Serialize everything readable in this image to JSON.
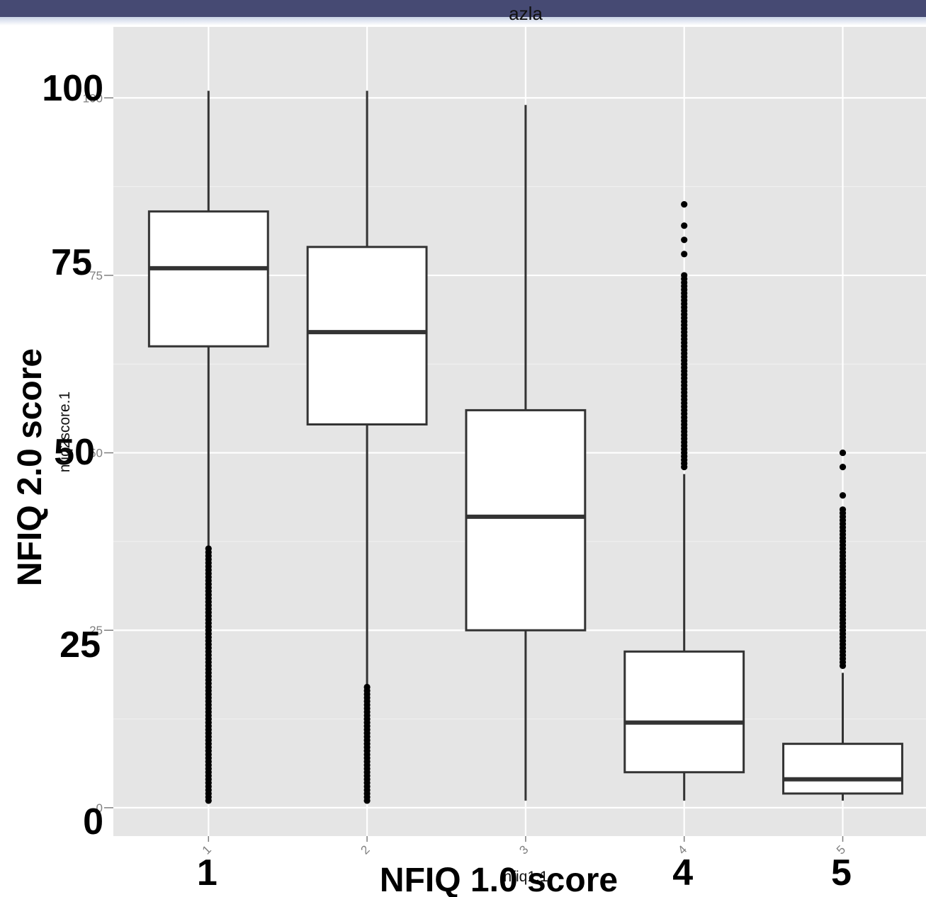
{
  "window": {
    "title": "azla"
  },
  "colors": {
    "panel_bg": "#e5e5e5",
    "grid": "#ffffff",
    "box_fill": "#ffffff",
    "box_stroke": "#333333",
    "outlier": "#000000"
  },
  "chart_data": {
    "type": "boxplot",
    "xlabel": "NFIQ 1.0 score",
    "ylabel": "NFIQ 2.0 score",
    "xlabel_small": "nfiq1.1",
    "ylabel_small": "nfiq2score.1",
    "categories": [
      "1",
      "2",
      "3",
      "4",
      "5"
    ],
    "x_tick_labels_large": [
      "1",
      "",
      "",
      "4",
      "5"
    ],
    "y_ticks": [
      0,
      25,
      50,
      75,
      100
    ],
    "y_tick_labels_large": [
      "0",
      "25",
      "50",
      "75",
      "100"
    ],
    "ylim": [
      -4,
      110
    ],
    "grid": true,
    "boxes": [
      {
        "category": "1",
        "whisker_low": 1,
        "q1": 65,
        "median": 76,
        "q3": 84,
        "whisker_high": 101,
        "outliers_range": [
          1,
          36.5
        ]
      },
      {
        "category": "2",
        "whisker_low": 1,
        "q1": 54,
        "median": 67,
        "q3": 79,
        "whisker_high": 101,
        "outliers_range": [
          1,
          17
        ]
      },
      {
        "category": "3",
        "whisker_low": 1,
        "q1": 25,
        "median": 41,
        "q3": 56,
        "whisker_high": 99,
        "outliers_range": null
      },
      {
        "category": "4",
        "whisker_low": 1,
        "q1": 5,
        "median": 12,
        "q3": 22,
        "whisker_high": 47,
        "outliers_range": [
          48,
          75
        ],
        "outliers_extra": [
          78,
          80,
          82,
          85
        ]
      },
      {
        "category": "5",
        "whisker_low": 1,
        "q1": 2,
        "median": 4,
        "q3": 9,
        "whisker_high": 19,
        "outliers_range": [
          20,
          42
        ],
        "outliers_extra": [
          44,
          48,
          50
        ]
      }
    ]
  }
}
